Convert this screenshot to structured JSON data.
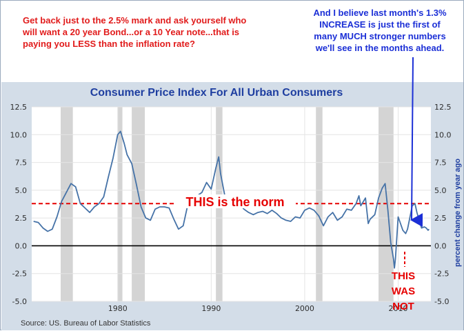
{
  "annotations": {
    "left_note": [
      {
        "text": "Get back just to the 2.5% mark and ask yourself who"
      },
      {
        "text": "will want a 20 year Bond...or a 10 Year note...that is"
      },
      {
        "text": "paying you LESS than the inflation rate?"
      }
    ],
    "right_note": [
      {
        "text": "And I believe last month's 1.3%"
      },
      {
        "text": "INCREASE  is just the first of"
      },
      {
        "text": "many MUCH stronger numbers"
      },
      {
        "text": "we'll see in the months ahead."
      }
    ],
    "norm_label": "THIS is the norm",
    "not_label": [
      "THIS",
      "WAS",
      "NOT"
    ]
  },
  "chart_data": {
    "type": "line",
    "title": "Consumer Price Index For All Urban Consumers",
    "ylabel_right": "percent change from year ago",
    "source": "Source: US. Bureau of Labor Statistics",
    "xlim": [
      1970.8,
      2013.5
    ],
    "ylim": [
      -5.0,
      12.5
    ],
    "x_ticks": [
      "1980",
      "1990",
      "2000",
      "2010"
    ],
    "y_ticks": [
      "12.5",
      "10.0",
      "7.5",
      "5.0",
      "2.5",
      "0.0",
      "-2.5",
      "-5.0"
    ],
    "grid": true,
    "legend": "none",
    "reference_lines": [
      {
        "name": "THIS is the norm",
        "value": 3.8
      },
      {
        "name": "zero",
        "value": 0.0
      }
    ],
    "recessions": [
      [
        1973.9,
        1975.2
      ],
      [
        1980.0,
        1980.5
      ],
      [
        1981.5,
        1982.9
      ],
      [
        1990.5,
        1991.2
      ],
      [
        2001.2,
        2001.9
      ],
      [
        2007.9,
        2009.5
      ]
    ],
    "series": [
      {
        "values": [
          [
            1971.0,
            2.2
          ],
          [
            1971.5,
            2.1
          ],
          [
            1972.0,
            1.6
          ],
          [
            1972.5,
            1.3
          ],
          [
            1973.0,
            1.5
          ],
          [
            1973.5,
            2.6
          ],
          [
            1974.0,
            4.0
          ],
          [
            1974.5,
            4.8
          ],
          [
            1975.0,
            5.6
          ],
          [
            1975.5,
            5.3
          ],
          [
            1976.0,
            3.8
          ],
          [
            1976.5,
            3.4
          ],
          [
            1977.0,
            3.0
          ],
          [
            1977.5,
            3.5
          ],
          [
            1978.0,
            3.8
          ],
          [
            1978.5,
            4.4
          ],
          [
            1979.0,
            6.2
          ],
          [
            1979.5,
            7.9
          ],
          [
            1980.0,
            10.0
          ],
          [
            1980.3,
            10.3
          ],
          [
            1980.7,
            9.2
          ],
          [
            1981.0,
            8.2
          ],
          [
            1981.5,
            7.4
          ],
          [
            1982.0,
            5.5
          ],
          [
            1982.5,
            3.5
          ],
          [
            1983.0,
            2.5
          ],
          [
            1983.5,
            2.3
          ],
          [
            1984.0,
            3.3
          ],
          [
            1984.5,
            3.5
          ],
          [
            1985.0,
            3.5
          ],
          [
            1985.5,
            3.4
          ],
          [
            1986.0,
            2.4
          ],
          [
            1986.5,
            1.5
          ],
          [
            1987.0,
            1.8
          ],
          [
            1987.5,
            3.7
          ],
          [
            1988.0,
            4.5
          ],
          [
            1988.5,
            4.5
          ],
          [
            1989.0,
            4.8
          ],
          [
            1989.5,
            5.7
          ],
          [
            1990.0,
            5.1
          ],
          [
            1990.5,
            7.0
          ],
          [
            1990.8,
            8.0
          ],
          [
            1991.0,
            6.5
          ],
          [
            1991.5,
            4.3
          ],
          [
            1992.0,
            3.9
          ],
          [
            1992.5,
            4.2
          ],
          [
            1993.0,
            3.8
          ],
          [
            1993.5,
            3.3
          ],
          [
            1994.0,
            3.0
          ],
          [
            1994.5,
            2.8
          ],
          [
            1995.0,
            3.0
          ],
          [
            1995.5,
            3.1
          ],
          [
            1996.0,
            2.9
          ],
          [
            1996.5,
            3.2
          ],
          [
            1997.0,
            2.9
          ],
          [
            1997.5,
            2.5
          ],
          [
            1998.0,
            2.3
          ],
          [
            1998.5,
            2.2
          ],
          [
            1999.0,
            2.6
          ],
          [
            1999.5,
            2.5
          ],
          [
            2000.0,
            3.2
          ],
          [
            2000.5,
            3.4
          ],
          [
            2001.0,
            3.2
          ],
          [
            2001.5,
            2.7
          ],
          [
            2002.0,
            1.8
          ],
          [
            2002.5,
            2.6
          ],
          [
            2003.0,
            3.0
          ],
          [
            2003.5,
            2.3
          ],
          [
            2004.0,
            2.6
          ],
          [
            2004.5,
            3.3
          ],
          [
            2005.0,
            3.2
          ],
          [
            2005.5,
            3.8
          ],
          [
            2005.8,
            4.5
          ],
          [
            2006.0,
            3.6
          ],
          [
            2006.5,
            4.3
          ],
          [
            2006.8,
            2.0
          ],
          [
            2007.0,
            2.4
          ],
          [
            2007.5,
            2.8
          ],
          [
            2007.9,
            4.3
          ],
          [
            2008.3,
            5.2
          ],
          [
            2008.6,
            5.6
          ],
          [
            2008.9,
            3.2
          ],
          [
            2009.2,
            0.3
          ],
          [
            2009.5,
            -1.2
          ],
          [
            2009.6,
            -2.0
          ],
          [
            2009.7,
            -1.2
          ],
          [
            2010.0,
            2.6
          ],
          [
            2010.5,
            1.4
          ],
          [
            2010.8,
            1.1
          ],
          [
            2011.0,
            1.5
          ],
          [
            2011.5,
            3.6
          ],
          [
            2011.8,
            3.8
          ],
          [
            2012.0,
            3.0
          ],
          [
            2012.5,
            1.6
          ],
          [
            2012.8,
            1.7
          ],
          [
            2013.0,
            1.6
          ],
          [
            2013.2,
            1.4
          ],
          [
            2013.3,
            1.5
          ]
        ]
      }
    ]
  }
}
